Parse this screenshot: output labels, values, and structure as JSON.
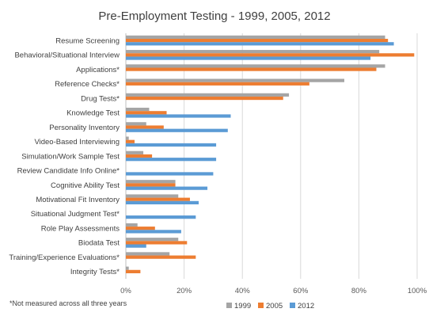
{
  "chart_data": {
    "type": "bar",
    "orientation": "horizontal",
    "title": "Pre-Employment Testing - 1999, 2005, 2012",
    "xlabel": "",
    "ylabel": "",
    "xlim": [
      0,
      100
    ],
    "x_ticks": [
      0,
      20,
      40,
      60,
      80,
      100
    ],
    "tick_format": "%",
    "grid": "vertical",
    "legend_position": "bottom",
    "categories": [
      "Resume Screening",
      "Behavioral/Situational Interview",
      "Applications*",
      "Reference Checks*",
      "Drug Tests*",
      "Knowledge Test",
      "Personality Inventory",
      "Video-Based Interviewing",
      "Simulation/Work Sample Test",
      "Review Candidate Info Online*",
      "Cognitive Ability Test",
      "Motivational Fit Inventory",
      "Situational Judgment Test*",
      "Role Play Assessments",
      "Biodata Test",
      "Training/Experience Evaluations*",
      "Integrity Tests*"
    ],
    "series": [
      {
        "name": "1999",
        "color": "#a5a5a5",
        "values": [
          89,
          87,
          89,
          75,
          56,
          8,
          7,
          1,
          6,
          null,
          17,
          18,
          null,
          4,
          18,
          15,
          1
        ]
      },
      {
        "name": "2005",
        "color": "#ed7d31",
        "values": [
          90,
          99,
          86,
          63,
          54,
          14,
          13,
          3,
          9,
          null,
          17,
          22,
          null,
          10,
          21,
          24,
          5
        ]
      },
      {
        "name": "2012",
        "color": "#5b9bd5",
        "values": [
          92,
          84,
          null,
          null,
          null,
          36,
          35,
          31,
          31,
          30,
          28,
          25,
          24,
          19,
          7,
          null,
          null
        ]
      }
    ],
    "footnote": "*Not measured across all three years"
  }
}
